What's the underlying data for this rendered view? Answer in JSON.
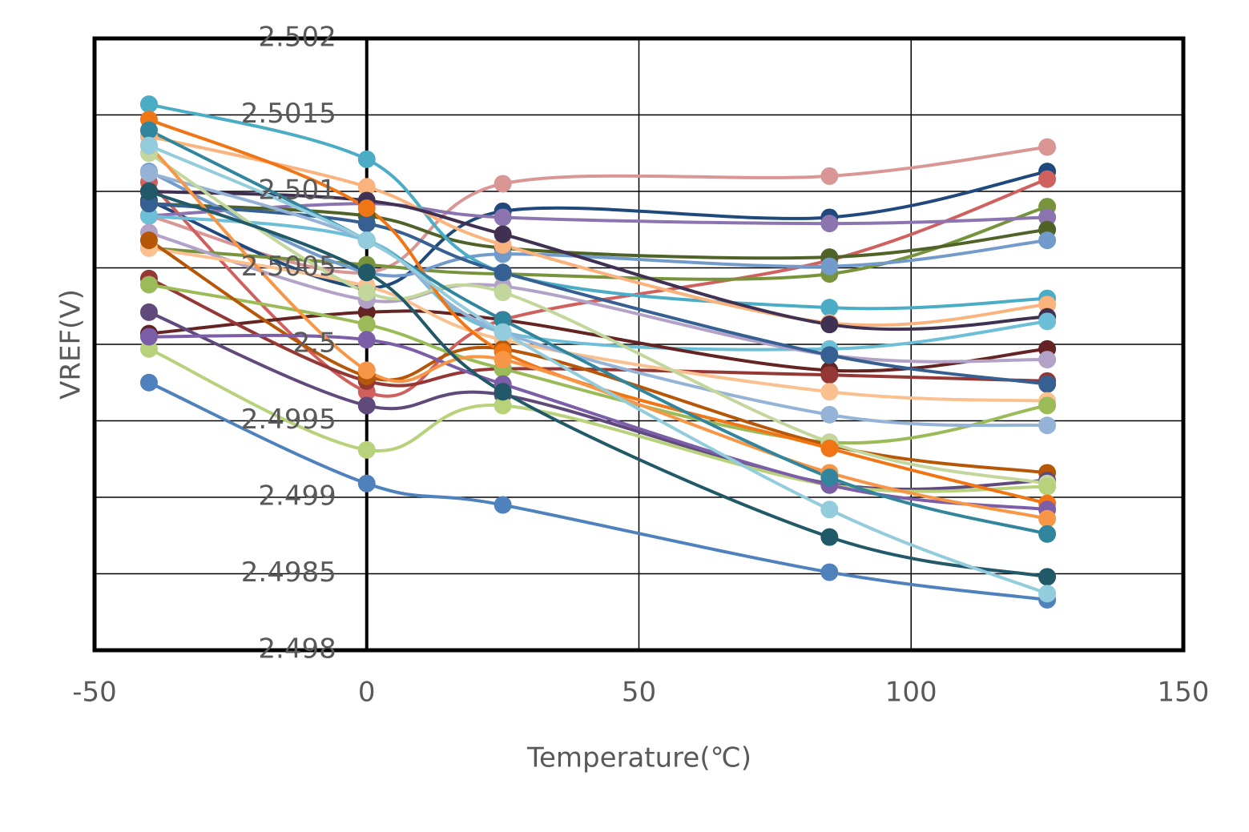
{
  "chart_data": {
    "type": "line",
    "x_label": "Temperature(℃)",
    "y_label": "VREF(V)",
    "x": [
      -40,
      0,
      25,
      85,
      125
    ],
    "xlim": [
      -50,
      150
    ],
    "xticks": [
      -50,
      0,
      50,
      100,
      150
    ],
    "ylim": [
      2.498,
      2.502
    ],
    "yticks": [
      2.498,
      2.4985,
      2.499,
      2.4995,
      2.5,
      2.5005,
      2.501,
      2.5015,
      2.502
    ],
    "grid": true,
    "series": [
      {
        "color": "#4f81bd",
        "values": [
          2.49975,
          2.49909,
          2.49895,
          2.49851,
          2.49833
        ]
      },
      {
        "color": "#d99694",
        "values": [
          2.50084,
          2.50047,
          2.50105,
          2.5011,
          2.50129
        ]
      },
      {
        "color": "#1f497d",
        "values": [
          2.50094,
          2.50037,
          2.50087,
          2.50083,
          2.50113
        ]
      },
      {
        "color": "#d0605e",
        "values": [
          2.50106,
          2.49969,
          2.50016,
          2.50055,
          2.50108
        ]
      },
      {
        "color": "#77933c",
        "values": [
          2.50063,
          2.50052,
          2.50046,
          2.50046,
          2.5009
        ]
      },
      {
        "color": "#8c74b0",
        "values": [
          2.50084,
          2.50092,
          2.50083,
          2.50079,
          2.50083
        ]
      },
      {
        "color": "#4f6228",
        "values": [
          2.50092,
          2.50084,
          2.50063,
          2.50057,
          2.50075
        ]
      },
      {
        "color": "#729aca",
        "values": [
          2.50113,
          2.50047,
          2.50059,
          2.50051,
          2.50068
        ]
      },
      {
        "color": "#4bacc6",
        "values": [
          2.50157,
          2.50121,
          2.50047,
          2.50024,
          2.5003
        ]
      },
      {
        "color": "#fab37c",
        "values": [
          2.50136,
          2.50103,
          2.50065,
          2.50014,
          2.50026
        ]
      },
      {
        "color": "#403152",
        "values": [
          2.501,
          2.50094,
          2.50072,
          2.50013,
          2.50018
        ]
      },
      {
        "color": "#6cbfd6",
        "values": [
          2.50084,
          2.50068,
          2.50008,
          2.49997,
          2.50015
        ]
      },
      {
        "color": "#632423",
        "values": [
          2.50007,
          2.50021,
          2.50016,
          2.49983,
          2.49997
        ]
      },
      {
        "color": "#b3a2c7",
        "values": [
          2.50073,
          2.50029,
          2.50038,
          2.49993,
          2.4999
        ]
      },
      {
        "color": "#953735",
        "values": [
          2.50043,
          2.49976,
          2.49984,
          2.4998,
          2.49976
        ]
      },
      {
        "color": "#376092",
        "values": [
          2.50092,
          2.50079,
          2.50047,
          2.49993,
          2.49974
        ]
      },
      {
        "color": "#fac090",
        "values": [
          2.50063,
          2.50038,
          2.50003,
          2.49969,
          2.49963
        ]
      },
      {
        "color": "#9bbb59",
        "values": [
          2.50039,
          2.50013,
          2.49984,
          2.49936,
          2.4996
        ]
      },
      {
        "color": "#95b3d7",
        "values": [
          2.50112,
          2.50068,
          2.50008,
          2.49954,
          2.49947
        ]
      },
      {
        "color": "#b65708",
        "values": [
          2.50068,
          2.49979,
          2.49997,
          2.49934,
          2.49916
        ]
      },
      {
        "color": "#604a7b",
        "values": [
          2.50021,
          2.4996,
          2.49967,
          2.49909,
          2.49911
        ]
      },
      {
        "color": "#c3d69b",
        "values": [
          2.50125,
          2.50034,
          2.50034,
          2.49936,
          2.49909
        ]
      },
      {
        "color": "#b7d27a",
        "values": [
          2.49997,
          2.49931,
          2.4996,
          2.49908,
          2.49907
        ]
      },
      {
        "color": "#f07515",
        "values": [
          2.50147,
          2.50089,
          2.49995,
          2.49932,
          2.49896
        ]
      },
      {
        "color": "#7b5ea7",
        "values": [
          2.50005,
          2.50003,
          2.49974,
          2.49908,
          2.49892
        ]
      },
      {
        "color": "#f79646",
        "values": [
          2.5013,
          2.49983,
          2.4999,
          2.49916,
          2.49886
        ]
      },
      {
        "color": "#31859c",
        "values": [
          2.5014,
          2.50068,
          2.50016,
          2.49913,
          2.49876
        ]
      },
      {
        "color": "#215968",
        "values": [
          2.501,
          2.50047,
          2.49969,
          2.49874,
          2.49848
        ]
      },
      {
        "color": "#93cddd",
        "values": [
          2.5013,
          2.50068,
          2.50008,
          2.49892,
          2.49837
        ]
      }
    ]
  }
}
